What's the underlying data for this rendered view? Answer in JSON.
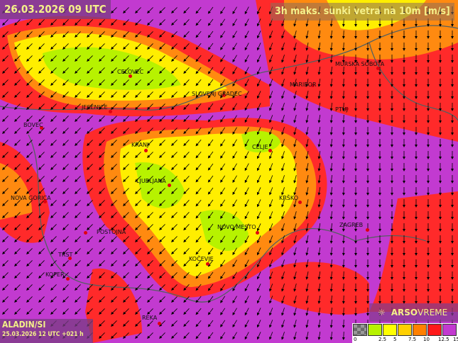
{
  "header": {
    "valid_time": "26.03.2026 09 UTC",
    "title": "3h maks. sunki vetra na 10m [m/s]"
  },
  "model": {
    "name": "ALADIN/SI",
    "run": "25.03.2026 12 UTC +021 h"
  },
  "brand": {
    "bold": "ARSO",
    "light": "VREME",
    "icon": "wind-turbine-icon"
  },
  "legend": {
    "colors": [
      "#8a8a8a",
      "#b7f200",
      "#ffff00",
      "#ffd000",
      "#ff8000",
      "#ff1a1a",
      "#c23ad0"
    ],
    "ticks": [
      "0",
      "2.5",
      "5",
      "7.5",
      "10",
      "12.5",
      "15"
    ]
  },
  "cities": [
    "CELOVEC",
    "JESENICE",
    "BOVEC",
    "KRANJ",
    "SLOVENJ GRADEC",
    "MARIBOR",
    "MURSKA SOBOTA",
    "PTUJ",
    "CELJE",
    "LJUBLJANA",
    "NOVA GORICA",
    "KRŠKO",
    "POSTOJNA",
    "NOVO MESTO",
    "ZAGREB",
    "TRST",
    "KOPER",
    "KOČEVJE",
    "REKA"
  ]
}
